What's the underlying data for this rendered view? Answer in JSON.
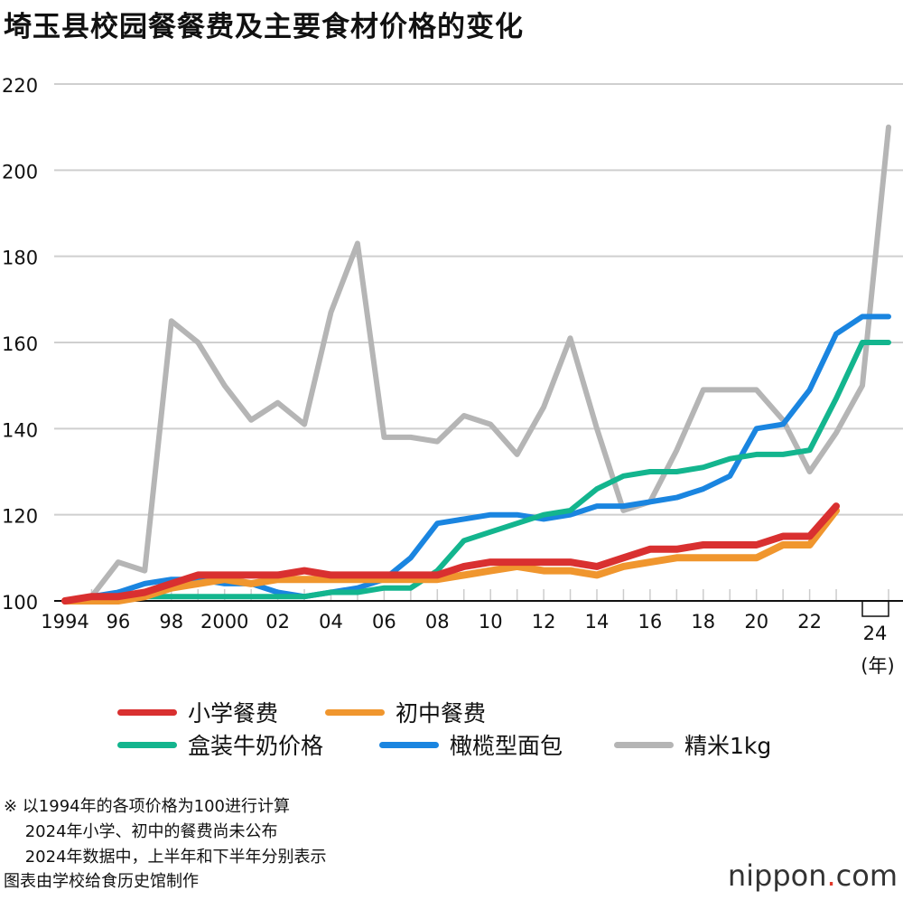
{
  "title": "埼玉县校园餐餐费及主要食材价格的变化",
  "chart_data": {
    "type": "line",
    "title": "埼玉县校园餐餐费及主要食材价格的变化",
    "x": [
      "1994",
      "1995",
      "1996",
      "1997",
      "1998",
      "1999",
      "2000",
      "2001",
      "2002",
      "2003",
      "2004",
      "2005",
      "2006",
      "2007",
      "2008",
      "2009",
      "2010",
      "2011",
      "2012",
      "2013",
      "2014",
      "2015",
      "2016",
      "2017",
      "2018",
      "2019",
      "2020",
      "2021",
      "2022",
      "2023",
      "2024上半年",
      "2024下半年"
    ],
    "x_tick_labels": [
      "1994",
      "96",
      "98",
      "2000",
      "02",
      "04",
      "06",
      "08",
      "10",
      "12",
      "14",
      "16",
      "18",
      "20",
      "22",
      "24"
    ],
    "x_unit": "(年)",
    "ylim": [
      100,
      220
    ],
    "y_ticks": [
      100,
      120,
      140,
      160,
      180,
      200,
      220
    ],
    "grid": true,
    "legend_position": "bottom",
    "series": [
      {
        "name": "精米1kg",
        "color": "#b5b5b5",
        "values": [
          100,
          101,
          109,
          107,
          165,
          160,
          150,
          142,
          146,
          141,
          167,
          183,
          138,
          138,
          137,
          143,
          141,
          134,
          145,
          161,
          140,
          121,
          123,
          135,
          149,
          149,
          149,
          142,
          130,
          139,
          150,
          210
        ]
      },
      {
        "name": "橄榄型面包",
        "color": "#1a85e0",
        "values": [
          100,
          101,
          102,
          104,
          105,
          105,
          104,
          104,
          102,
          101,
          102,
          103,
          105,
          110,
          118,
          119,
          120,
          120,
          119,
          120,
          122,
          122,
          123,
          124,
          126,
          129,
          140,
          141,
          149,
          162,
          166,
          166
        ]
      },
      {
        "name": "盒装牛奶价格",
        "color": "#13b58e",
        "values": [
          100,
          100,
          100,
          101,
          101,
          101,
          101,
          101,
          101,
          101,
          102,
          102,
          103,
          103,
          107,
          114,
          116,
          118,
          120,
          121,
          126,
          129,
          130,
          130,
          131,
          133,
          134,
          134,
          135,
          147,
          160,
          160
        ]
      },
      {
        "name": "初中餐费",
        "color": "#f0962e",
        "values": [
          100,
          100,
          100,
          101,
          103,
          104,
          105,
          104,
          105,
          105,
          105,
          105,
          105,
          105,
          105,
          106,
          107,
          108,
          107,
          107,
          106,
          108,
          109,
          110,
          110,
          110,
          110,
          113,
          113,
          121,
          null,
          null
        ]
      },
      {
        "name": "小学餐费",
        "color": "#d93030",
        "values": [
          100,
          101,
          101,
          102,
          104,
          106,
          106,
          106,
          106,
          107,
          106,
          106,
          106,
          106,
          106,
          108,
          109,
          109,
          109,
          109,
          108,
          110,
          112,
          112,
          113,
          113,
          113,
          115,
          115,
          122,
          null,
          null
        ]
      }
    ]
  },
  "legend": [
    {
      "label": "小学餐费",
      "color": "#d93030"
    },
    {
      "label": "初中餐费",
      "color": "#f0962e"
    },
    {
      "label": "盒装牛奶价格",
      "color": "#13b58e"
    },
    {
      "label": "橄榄型面包",
      "color": "#1a85e0"
    },
    {
      "label": "精米1kg",
      "color": "#b5b5b5"
    }
  ],
  "notes": [
    "※ 以1994年的各项价格为100进行计算",
    "　 2024年小学、初中的餐费尚未公布",
    "　 2024年数据中，上半年和下半年分别表示",
    "图表由学校给食历史馆制作"
  ],
  "logo": {
    "text": "nippon",
    "dot": ".",
    "suffix": "com"
  }
}
